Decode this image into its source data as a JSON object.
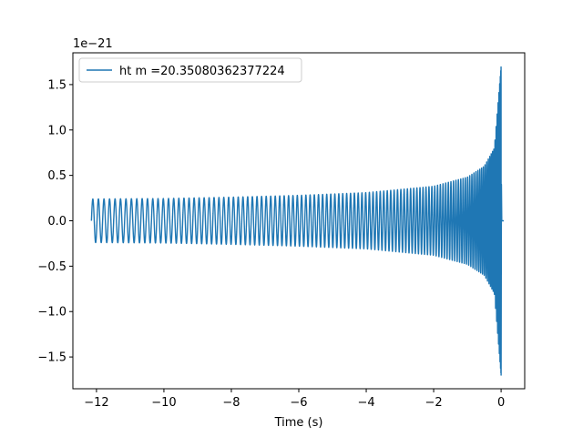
{
  "chart_data": {
    "type": "line",
    "xlabel": "Time (s)",
    "ylabel": "",
    "y_scale_label": "1e−21",
    "xlim": [
      -12.7,
      0.7
    ],
    "ylim": [
      -1.85,
      1.85
    ],
    "x_ticks": [
      -12,
      -10,
      -8,
      -6,
      -4,
      -2,
      0
    ],
    "x_tick_labels": [
      "−12",
      "−10",
      "−8",
      "−6",
      "−4",
      "−2",
      "0"
    ],
    "y_ticks": [
      -1.5,
      -1.0,
      -0.5,
      0.0,
      0.5,
      1.0,
      1.5
    ],
    "y_tick_labels": [
      "−1.5",
      "−1.0",
      "−0.5",
      "0.0",
      "0.5",
      "1.0",
      "1.5"
    ],
    "grid": false,
    "legend_position": "top-left",
    "series": [
      {
        "name": "ht m =20.35080362377224",
        "color": "#1f77b4",
        "t_start": -12.15,
        "t_merger": 0.0,
        "t_end": 0.08,
        "amplitude_envelope": [
          {
            "t": -12.15,
            "a": 0.24
          },
          {
            "t": -10,
            "a": 0.245
          },
          {
            "t": -8,
            "a": 0.26
          },
          {
            "t": -6,
            "a": 0.28
          },
          {
            "t": -4,
            "a": 0.31
          },
          {
            "t": -2,
            "a": 0.38
          },
          {
            "t": -1,
            "a": 0.48
          },
          {
            "t": -0.5,
            "a": 0.6
          },
          {
            "t": -0.2,
            "a": 0.8
          },
          {
            "t": 0.0,
            "a": 1.7
          }
        ],
        "post_merger_value": 0.0
      }
    ]
  }
}
